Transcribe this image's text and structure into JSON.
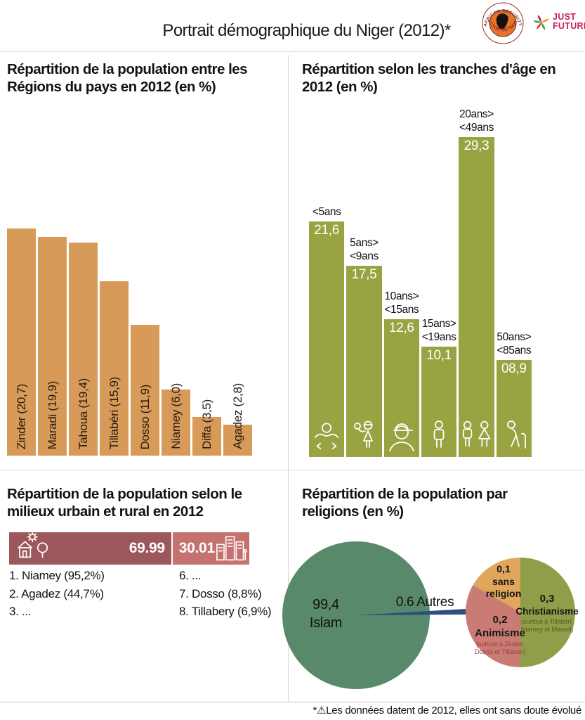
{
  "header": {
    "title": "Portrait démographique du Niger (2012)*",
    "logo_assn": {
      "arc_top": "AFRICAN SECURITY",
      "arc_bottom": "SECTOR NETWORK"
    },
    "logo_just_future": {
      "line1": "JUST",
      "line2": "FUTURE",
      "color": "#c81e5b"
    }
  },
  "chart_data": [
    {
      "id": "regions",
      "type": "bar",
      "title": "Répartition de la population entre les Régions du pays en 2012 (en %)",
      "categories": [
        "Zinder",
        "Maradi",
        "Tahoua",
        "Tillabéri",
        "Dosso",
        "Niamey",
        "Diffa",
        "Agadez"
      ],
      "values": [
        20.7,
        19.9,
        19.4,
        15.9,
        11.9,
        6.0,
        3.5,
        2.8
      ],
      "bar_labels": [
        "Zinder (20,7)",
        "Maradi (19,9)",
        "Tahoua (19,4)",
        "Tillabéri (15,9)",
        "Dosso (11,9)",
        "Niamey (6,0)",
        "Diffa (3,5)",
        "Agadez (2,8)"
      ],
      "bar_color": "#d89a58",
      "ylim": [
        0,
        21
      ],
      "grid": false,
      "legend": false
    },
    {
      "id": "tranches_age",
      "type": "bar",
      "title": "Répartition selon les tranches d'âge en 2012 (en %)",
      "categories": [
        "<5ans",
        "5ans>\n<9ans",
        "10ans>\n<15ans",
        "15ans>\n<19ans",
        "20ans>\n<49ans",
        "50ans>\n<85ans"
      ],
      "values": [
        21.6,
        17.5,
        12.6,
        10.1,
        29.3,
        8.9
      ],
      "value_labels": [
        "21,6",
        "17,5",
        "12,6",
        "10,1",
        "29,3",
        "08,9"
      ],
      "icons": [
        "baby-icon",
        "child-icon",
        "teen-icon",
        "adult-icon",
        "couple-icon",
        "elderly-icon"
      ],
      "bar_color": "#99a342",
      "ylim": [
        0,
        30
      ],
      "grid": false,
      "legend": false
    },
    {
      "id": "urbain_rural",
      "type": "bar",
      "title": "Répartition de la population selon le milieux urbain et rural en 2012",
      "segments": [
        {
          "label": "rural",
          "value": 69.99,
          "value_label": "69.99",
          "color": "#9c575c",
          "icon": "village-icon"
        },
        {
          "label": "urbain",
          "value": 30.01,
          "value_label": "30.01",
          "color": "#c47170",
          "icon": "city-icon"
        }
      ],
      "list_left": [
        "1. Niamey (95,2%)",
        "2. Agadez (44,7%)",
        "3. ..."
      ],
      "list_right": [
        "6. ...",
        "7. Dosso (8,8%)",
        "8. Tillabery (6,9%)"
      ]
    },
    {
      "id": "religions",
      "type": "pie",
      "title": "Répartition de la population par religions (en %)",
      "main_circle": {
        "value_label": "99,4",
        "label": "Islam",
        "value": 99.4,
        "color": "#57896a"
      },
      "connector": {
        "label": "0.6 Autres",
        "value": 0.6,
        "color": "#2e4d80"
      },
      "slices": [
        {
          "value_label": "0,3",
          "label": "Christianisme",
          "note": "(surtout à Tillabéri, Niamey et Maradi)",
          "value": 0.3,
          "color": "#8f9e48",
          "note_color": "#5a611f"
        },
        {
          "value_label": "0,2",
          "label": "Animisme",
          "note": "(surtout à Zinder, Dosso et Tillabéri)",
          "value": 0.2,
          "color": "#c97b74",
          "note_color": "#9c3f3f"
        },
        {
          "value_label": "0,1",
          "label": "sans religion",
          "note": "",
          "value": 0.1,
          "color": "#e0a65c",
          "note_color": ""
        }
      ]
    }
  ],
  "footer": {
    "note": "*⚠Les données datent de 2012, elles ont sans doute évolué"
  }
}
